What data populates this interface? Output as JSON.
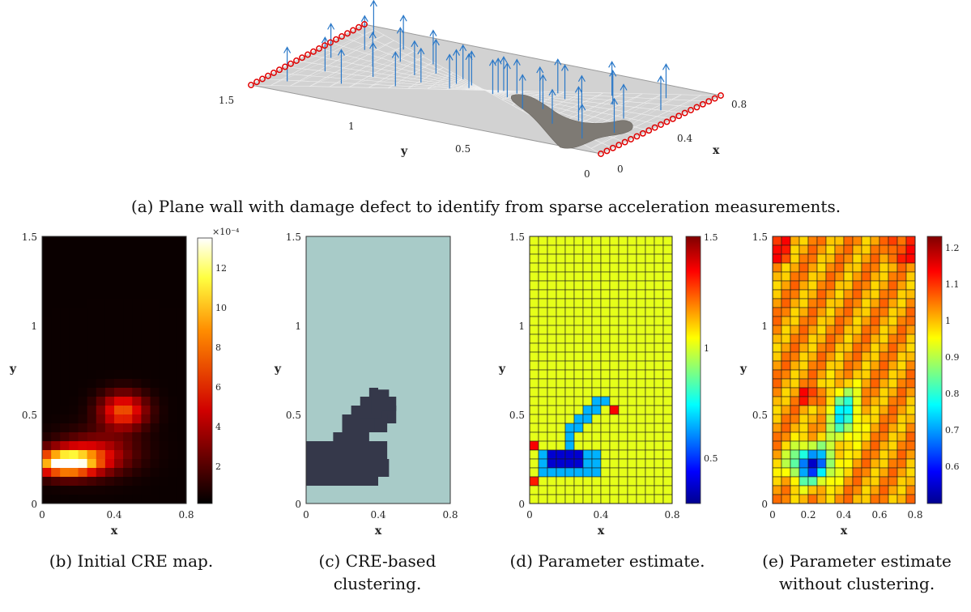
{
  "top": {
    "y_ticks": [
      "1.5",
      "1",
      "0.5",
      "0"
    ],
    "x_ticks": [
      "0",
      "0.4",
      "0.8"
    ],
    "ylabel": "y",
    "xlabel": "x",
    "caption": "(a) Plane wall with damage defect to identify from sparse acceleration measurements."
  },
  "panels": [
    {
      "caption": [
        "(b) Initial CRE map."
      ],
      "xlabel": "x",
      "ylabel": "y",
      "x_ticks": [
        "0",
        "0.4",
        "0.8"
      ],
      "y_ticks": [
        "0",
        "0.5",
        "1",
        "1.5"
      ],
      "colorbar": {
        "exponent": "×10⁻⁴",
        "ticks": [
          "2",
          "4",
          "6",
          "8",
          "10",
          "12"
        ]
      }
    },
    {
      "caption": [
        "(c) CRE-based",
        "clustering."
      ],
      "xlabel": "x",
      "ylabel": "y",
      "x_ticks": [
        "0",
        "0.4",
        "0.8"
      ],
      "y_ticks": [
        "0",
        "0.5",
        "1",
        "1.5"
      ]
    },
    {
      "caption": [
        "(d) Parameter estimate."
      ],
      "xlabel": "x",
      "ylabel": "y",
      "x_ticks": [
        "0",
        "0.4",
        "0.8"
      ],
      "y_ticks": [
        "0",
        "0.5",
        "1",
        "1.5"
      ],
      "colorbar": {
        "ticks": [
          "0.5",
          "1",
          "1.5"
        ]
      }
    },
    {
      "caption": [
        "(e) Parameter estimate",
        "without clustering."
      ],
      "xlabel": "x",
      "ylabel": "y",
      "x_ticks": [
        "0",
        "0.2",
        "0.4",
        "0.6",
        "0.8"
      ],
      "y_ticks": [
        "0",
        "0.5",
        "1",
        "1.5"
      ],
      "colorbar": {
        "ticks": [
          "0.6",
          "0.7",
          "0.8",
          "0.9",
          "1",
          "1.1",
          "1.2"
        ]
      }
    }
  ]
}
